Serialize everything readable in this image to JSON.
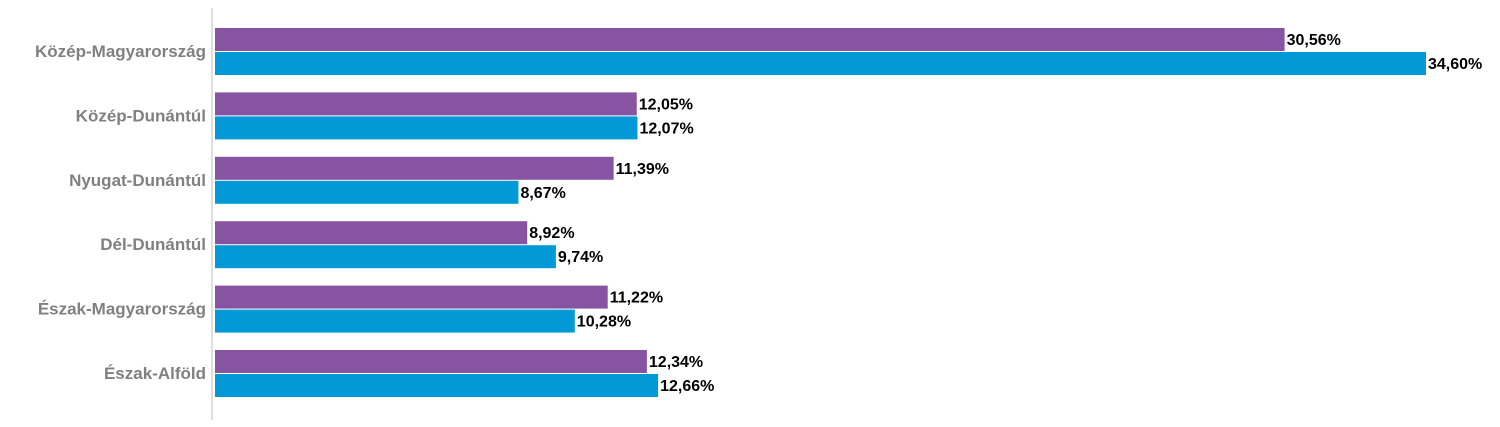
{
  "chart_data": {
    "type": "bar",
    "orientation": "horizontal",
    "categories": [
      "Közép-Magyarország",
      "Közép-Dunántúl",
      "Nyugat-Dunántúl",
      "Dél-Dunántúl",
      "Észak-Magyarország",
      "Észak-Alföld"
    ],
    "series": [
      {
        "values": [
          30.56,
          12.05,
          11.39,
          8.92,
          11.22,
          12.34
        ],
        "labels": [
          "30,56%",
          "12,05%",
          "11,39%",
          "8,92%",
          "11,22%",
          "12,34%"
        ],
        "color": "#8753a3"
      },
      {
        "values": [
          34.6,
          12.07,
          8.67,
          9.74,
          10.28,
          12.66
        ],
        "labels": [
          "34,60%",
          "12,07%",
          "8,67%",
          "9,74%",
          "10,28%",
          "12,66%"
        ],
        "color": "#0399d7"
      }
    ],
    "xlim": [
      0,
      35
    ],
    "unit": "%",
    "legend": "none",
    "grid": false,
    "axis_color": "#bfbfbf"
  }
}
